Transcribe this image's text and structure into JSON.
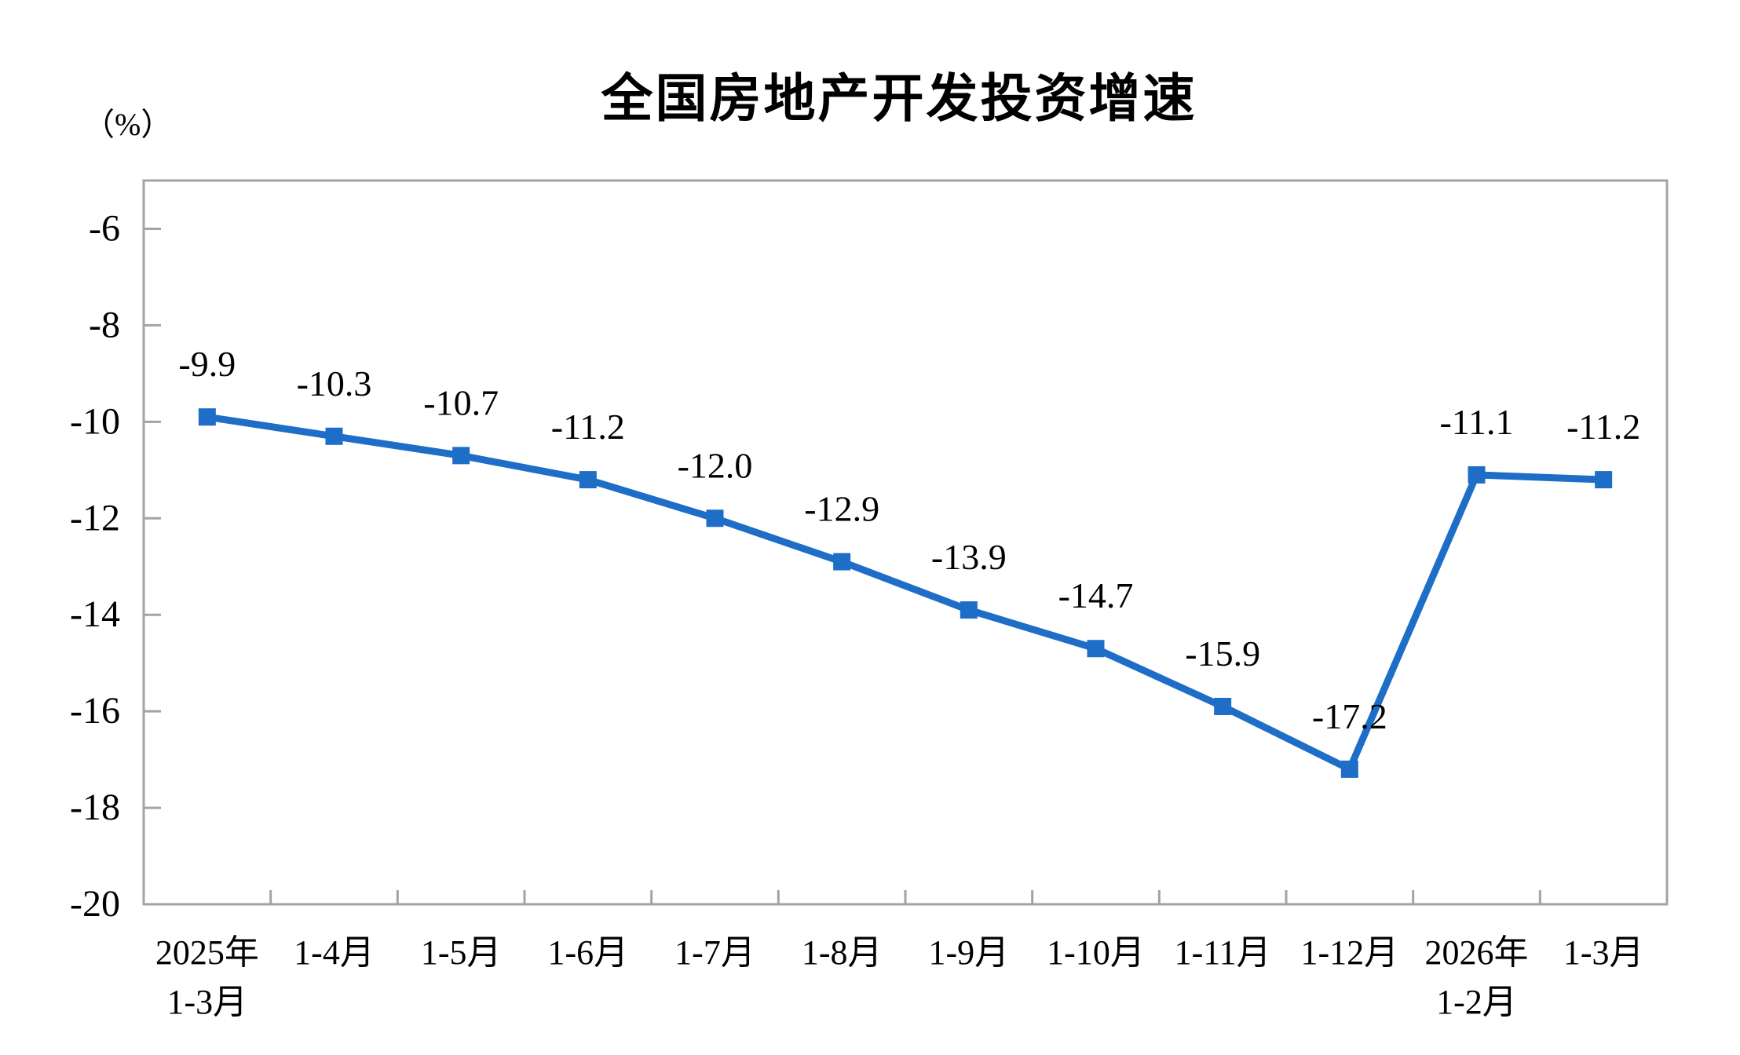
{
  "chart_data": {
    "type": "line",
    "title": "全国房地产开发投资增速",
    "unit_label": "（%）",
    "categories": [
      [
        "2025年",
        "1-3月"
      ],
      [
        "1-4月"
      ],
      [
        "1-5月"
      ],
      [
        "1-6月"
      ],
      [
        "1-7月"
      ],
      [
        "1-8月"
      ],
      [
        "1-9月"
      ],
      [
        "1-10月"
      ],
      [
        "1-11月"
      ],
      [
        "1-12月"
      ],
      [
        "2026年",
        "1-2月"
      ],
      [
        "1-3月"
      ]
    ],
    "values": [
      -9.9,
      -10.3,
      -10.7,
      -11.2,
      -12.0,
      -12.9,
      -13.9,
      -14.7,
      -15.9,
      -17.2,
      -11.1,
      -11.2
    ],
    "data_labels": [
      "-9.9",
      "-10.3",
      "-10.7",
      "-11.2",
      "-12.0",
      "-12.9",
      "-13.9",
      "-14.7",
      "-15.9",
      "-17.2",
      "-11.1",
      "-11.2"
    ],
    "xlabel": "",
    "ylabel": "（%）",
    "ylim": [
      -20,
      -5
    ],
    "y_ticks": [
      -6,
      -8,
      -10,
      -12,
      -14,
      -16,
      -18,
      -20
    ],
    "grid": false,
    "legend_position": "none",
    "marker": "square",
    "colors": {
      "line": "#1E6EC8",
      "marker": "#1E6EC8",
      "axis": "#A3A3A3",
      "text": "#000000",
      "background": "#FFFFFF"
    }
  }
}
